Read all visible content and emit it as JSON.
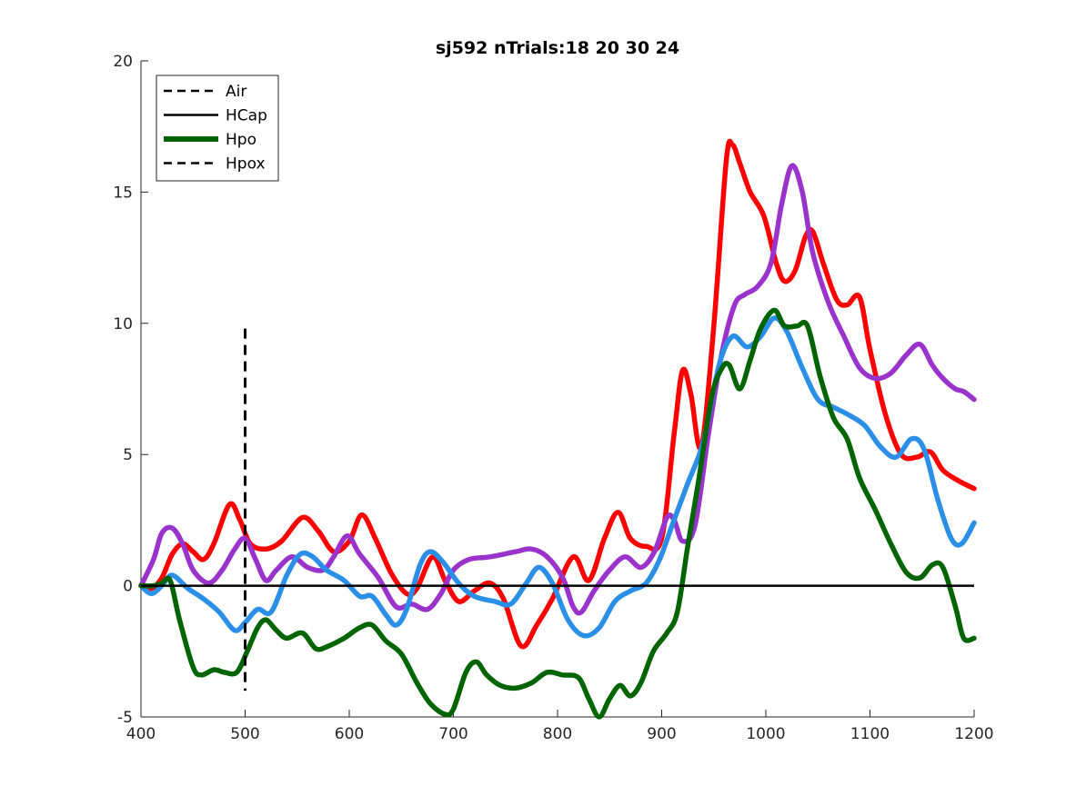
{
  "chart_data": {
    "type": "line",
    "title": "sj592 nTrials:18  20  30  24",
    "xlabel": "",
    "ylabel": "",
    "xlim": [
      400,
      1200
    ],
    "ylim": [
      -5,
      20
    ],
    "xticks": [
      400,
      500,
      600,
      700,
      800,
      900,
      1000,
      1100,
      1200
    ],
    "yticks": [
      -5,
      0,
      5,
      10,
      15,
      20
    ],
    "grid": false,
    "legend_position": "top-left",
    "legend": [
      {
        "label": "Air",
        "style": "dashed",
        "color": "#000000"
      },
      {
        "label": "HCap",
        "style": "solid",
        "color": "#000000"
      },
      {
        "label": "Hpo",
        "style": "solid-thick",
        "color": "#006400"
      },
      {
        "label": "Hpox",
        "style": "dashed",
        "color": "#000000"
      }
    ],
    "reference_lines": [
      {
        "orientation": "horizontal",
        "y": 0,
        "x_range": [
          400,
          1200
        ],
        "style": "solid",
        "color": "#000000"
      },
      {
        "orientation": "vertical",
        "x": 500,
        "y_range": [
          -4,
          9.8
        ],
        "style": "dashed",
        "color": "#000000"
      }
    ],
    "series": [
      {
        "color": "#ff0000",
        "points": [
          [
            400,
            0
          ],
          [
            410,
            -0.1
          ],
          [
            420,
            0.3
          ],
          [
            430,
            1.2
          ],
          [
            440,
            1.6
          ],
          [
            450,
            1.3
          ],
          [
            460,
            1.0
          ],
          [
            470,
            1.6
          ],
          [
            485,
            3.1
          ],
          [
            495,
            2.5
          ],
          [
            505,
            1.6
          ],
          [
            520,
            1.4
          ],
          [
            535,
            1.7
          ],
          [
            555,
            2.6
          ],
          [
            570,
            2.1
          ],
          [
            585,
            1.3
          ],
          [
            600,
            1.7
          ],
          [
            612,
            2.7
          ],
          [
            625,
            1.8
          ],
          [
            640,
            0.5
          ],
          [
            655,
            -0.3
          ],
          [
            665,
            -0.1
          ],
          [
            680,
            1.1
          ],
          [
            692,
            0.2
          ],
          [
            705,
            -0.6
          ],
          [
            720,
            -0.2
          ],
          [
            735,
            0.1
          ],
          [
            748,
            -0.5
          ],
          [
            765,
            -2.3
          ],
          [
            780,
            -1.5
          ],
          [
            795,
            -0.5
          ],
          [
            815,
            1.1
          ],
          [
            830,
            0.2
          ],
          [
            845,
            1.8
          ],
          [
            858,
            2.8
          ],
          [
            870,
            1.8
          ],
          [
            885,
            1.5
          ],
          [
            900,
            1.8
          ],
          [
            912,
            5.8
          ],
          [
            920,
            8.2
          ],
          [
            928,
            7.3
          ],
          [
            938,
            5.3
          ],
          [
            950,
            9.9
          ],
          [
            962,
            16.2
          ],
          [
            968,
            16.8
          ],
          [
            975,
            16.1
          ],
          [
            985,
            15.0
          ],
          [
            998,
            14.1
          ],
          [
            1010,
            12.3
          ],
          [
            1018,
            11.6
          ],
          [
            1028,
            12.0
          ],
          [
            1038,
            13.3
          ],
          [
            1045,
            13.5
          ],
          [
            1055,
            12.3
          ],
          [
            1068,
            10.9
          ],
          [
            1078,
            10.7
          ],
          [
            1090,
            11.0
          ],
          [
            1100,
            9.0
          ],
          [
            1115,
            6.5
          ],
          [
            1130,
            5.0
          ],
          [
            1145,
            4.9
          ],
          [
            1158,
            5.1
          ],
          [
            1170,
            4.4
          ],
          [
            1185,
            4.0
          ],
          [
            1200,
            3.7
          ]
        ]
      },
      {
        "color": "#9933cc",
        "points": [
          [
            400,
            0
          ],
          [
            412,
            1.0
          ],
          [
            420,
            2.0
          ],
          [
            430,
            2.2
          ],
          [
            440,
            1.6
          ],
          [
            450,
            0.6
          ],
          [
            465,
            0.1
          ],
          [
            478,
            0.6
          ],
          [
            490,
            1.4
          ],
          [
            500,
            1.8
          ],
          [
            510,
            1.0
          ],
          [
            520,
            0.2
          ],
          [
            530,
            0.6
          ],
          [
            545,
            1.1
          ],
          [
            560,
            0.7
          ],
          [
            575,
            0.6
          ],
          [
            585,
            1.1
          ],
          [
            598,
            1.9
          ],
          [
            610,
            1.2
          ],
          [
            628,
            0.3
          ],
          [
            645,
            -0.8
          ],
          [
            660,
            -0.7
          ],
          [
            675,
            -0.9
          ],
          [
            688,
            -0.3
          ],
          [
            700,
            0.6
          ],
          [
            715,
            1.0
          ],
          [
            735,
            1.1
          ],
          [
            760,
            1.3
          ],
          [
            775,
            1.4
          ],
          [
            790,
            1.1
          ],
          [
            805,
            0.3
          ],
          [
            815,
            -0.8
          ],
          [
            823,
            -1.0
          ],
          [
            835,
            -0.2
          ],
          [
            850,
            0.6
          ],
          [
            865,
            1.1
          ],
          [
            880,
            0.7
          ],
          [
            893,
            1.3
          ],
          [
            905,
            2.6
          ],
          [
            912,
            2.5
          ],
          [
            920,
            1.7
          ],
          [
            932,
            2.3
          ],
          [
            945,
            5.8
          ],
          [
            958,
            8.9
          ],
          [
            970,
            10.7
          ],
          [
            980,
            11.1
          ],
          [
            992,
            11.4
          ],
          [
            1005,
            12.3
          ],
          [
            1015,
            14.5
          ],
          [
            1025,
            16.0
          ],
          [
            1035,
            15.0
          ],
          [
            1045,
            12.7
          ],
          [
            1060,
            10.8
          ],
          [
            1075,
            9.5
          ],
          [
            1090,
            8.3
          ],
          [
            1105,
            7.9
          ],
          [
            1120,
            8.1
          ],
          [
            1135,
            8.8
          ],
          [
            1148,
            9.2
          ],
          [
            1160,
            8.4
          ],
          [
            1170,
            7.9
          ],
          [
            1182,
            7.5
          ],
          [
            1190,
            7.4
          ],
          [
            1200,
            7.1
          ]
        ]
      },
      {
        "color": "#2b8fe8",
        "points": [
          [
            400,
            0
          ],
          [
            410,
            -0.3
          ],
          [
            420,
            0.0
          ],
          [
            430,
            0.4
          ],
          [
            445,
            -0.1
          ],
          [
            460,
            -0.5
          ],
          [
            475,
            -1.0
          ],
          [
            490,
            -1.7
          ],
          [
            500,
            -1.4
          ],
          [
            512,
            -0.9
          ],
          [
            525,
            -1.0
          ],
          [
            540,
            0.4
          ],
          [
            553,
            1.2
          ],
          [
            565,
            1.1
          ],
          [
            578,
            0.6
          ],
          [
            595,
            0.2
          ],
          [
            610,
            -0.4
          ],
          [
            622,
            -0.4
          ],
          [
            635,
            -1.1
          ],
          [
            645,
            -1.5
          ],
          [
            655,
            -0.9
          ],
          [
            668,
            0.8
          ],
          [
            678,
            1.3
          ],
          [
            690,
            0.9
          ],
          [
            705,
            0.1
          ],
          [
            720,
            -0.4
          ],
          [
            740,
            -0.6
          ],
          [
            755,
            -0.7
          ],
          [
            770,
            0.1
          ],
          [
            782,
            0.7
          ],
          [
            795,
            0.1
          ],
          [
            810,
            -1.3
          ],
          [
            825,
            -1.9
          ],
          [
            840,
            -1.6
          ],
          [
            855,
            -0.6
          ],
          [
            870,
            -0.2
          ],
          [
            885,
            0.1
          ],
          [
            898,
            1.0
          ],
          [
            910,
            2.3
          ],
          [
            925,
            3.9
          ],
          [
            940,
            5.5
          ],
          [
            955,
            8.4
          ],
          [
            968,
            9.5
          ],
          [
            982,
            9.1
          ],
          [
            995,
            9.5
          ],
          [
            1008,
            10.2
          ],
          [
            1020,
            9.7
          ],
          [
            1035,
            8.3
          ],
          [
            1050,
            7.1
          ],
          [
            1065,
            6.8
          ],
          [
            1080,
            6.5
          ],
          [
            1095,
            6.1
          ],
          [
            1110,
            5.3
          ],
          [
            1125,
            4.9
          ],
          [
            1140,
            5.6
          ],
          [
            1152,
            5.2
          ],
          [
            1165,
            3.3
          ],
          [
            1178,
            1.8
          ],
          [
            1188,
            1.6
          ],
          [
            1200,
            2.4
          ]
        ]
      },
      {
        "color": "#006400",
        "points": [
          [
            400,
            0
          ],
          [
            412,
            0.0
          ],
          [
            420,
            0.1
          ],
          [
            428,
            0.2
          ],
          [
            437,
            -1.3
          ],
          [
            450,
            -3.1
          ],
          [
            458,
            -3.4
          ],
          [
            470,
            -3.2
          ],
          [
            480,
            -3.3
          ],
          [
            492,
            -3.3
          ],
          [
            502,
            -2.5
          ],
          [
            512,
            -1.6
          ],
          [
            520,
            -1.3
          ],
          [
            530,
            -1.7
          ],
          [
            540,
            -2.0
          ],
          [
            555,
            -1.8
          ],
          [
            568,
            -2.4
          ],
          [
            580,
            -2.3
          ],
          [
            595,
            -2.0
          ],
          [
            610,
            -1.6
          ],
          [
            622,
            -1.5
          ],
          [
            635,
            -2.1
          ],
          [
            650,
            -2.6
          ],
          [
            665,
            -3.7
          ],
          [
            678,
            -4.5
          ],
          [
            692,
            -4.9
          ],
          [
            700,
            -4.7
          ],
          [
            712,
            -3.3
          ],
          [
            722,
            -2.9
          ],
          [
            732,
            -3.4
          ],
          [
            745,
            -3.8
          ],
          [
            760,
            -3.9
          ],
          [
            775,
            -3.7
          ],
          [
            790,
            -3.3
          ],
          [
            805,
            -3.4
          ],
          [
            820,
            -3.5
          ],
          [
            830,
            -4.3
          ],
          [
            840,
            -5.0
          ],
          [
            850,
            -4.3
          ],
          [
            860,
            -3.8
          ],
          [
            870,
            -4.2
          ],
          [
            880,
            -3.7
          ],
          [
            892,
            -2.5
          ],
          [
            905,
            -1.8
          ],
          [
            915,
            -1.0
          ],
          [
            925,
            1.5
          ],
          [
            935,
            3.9
          ],
          [
            948,
            7.2
          ],
          [
            958,
            8.3
          ],
          [
            965,
            8.4
          ],
          [
            975,
            7.5
          ],
          [
            985,
            8.6
          ],
          [
            995,
            9.8
          ],
          [
            1008,
            10.5
          ],
          [
            1018,
            9.9
          ],
          [
            1030,
            9.9
          ],
          [
            1040,
            9.9
          ],
          [
            1052,
            8.0
          ],
          [
            1065,
            6.4
          ],
          [
            1078,
            5.6
          ],
          [
            1090,
            4.1
          ],
          [
            1105,
            2.9
          ],
          [
            1120,
            1.6
          ],
          [
            1135,
            0.5
          ],
          [
            1148,
            0.3
          ],
          [
            1160,
            0.8
          ],
          [
            1170,
            0.7
          ],
          [
            1182,
            -0.8
          ],
          [
            1190,
            -2.0
          ],
          [
            1200,
            -2.0
          ]
        ]
      }
    ]
  }
}
